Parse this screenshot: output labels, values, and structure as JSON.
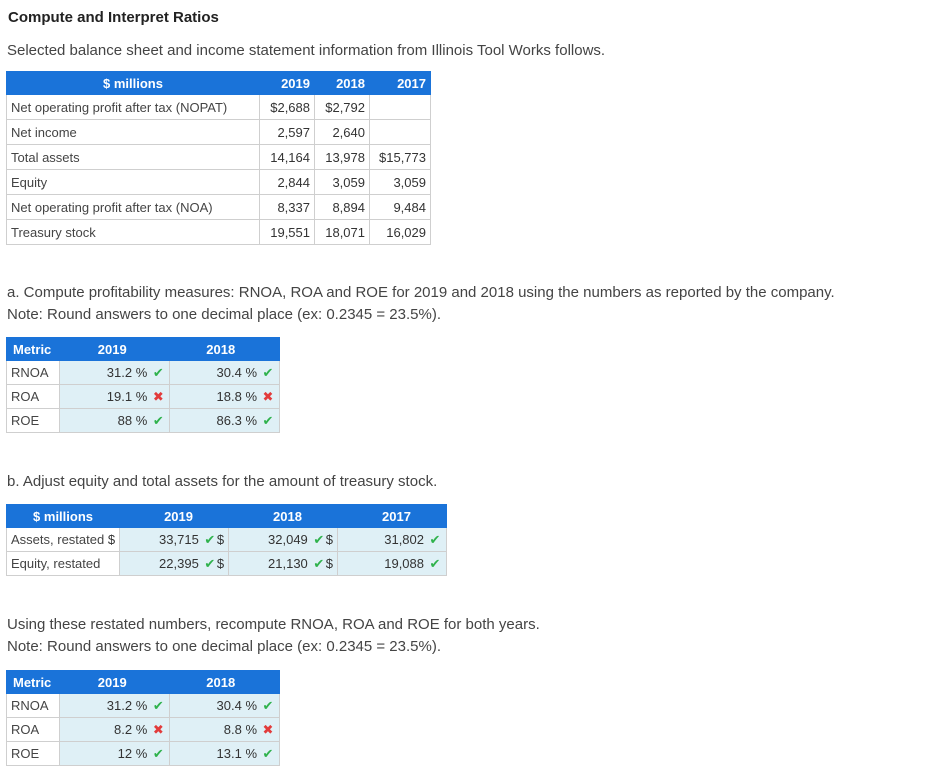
{
  "title": "Compute and Interpret Ratios",
  "intro": "Selected balance sheet and income statement information from Illinois Tool Works follows.",
  "table1": {
    "headers": [
      "$ millions",
      "2019",
      "2018",
      "2017"
    ],
    "rows": [
      {
        "label": "Net operating profit after tax (NOPAT)",
        "v2019": "$2,688",
        "v2018": "$2,792",
        "v2017": ""
      },
      {
        "label": "Net income",
        "v2019": "2,597",
        "v2018": "2,640",
        "v2017": ""
      },
      {
        "label": "Total assets",
        "v2019": "14,164",
        "v2018": "13,978",
        "v2017": "$15,773"
      },
      {
        "label": "Equity",
        "v2019": "2,844",
        "v2018": "3,059",
        "v2017": "3,059"
      },
      {
        "label": "Net operating profit after tax (NOA)",
        "v2019": "8,337",
        "v2018": "8,894",
        "v2017": "9,484"
      },
      {
        "label": "Treasury stock",
        "v2019": "19,551",
        "v2018": "18,071",
        "v2017": "16,029"
      }
    ]
  },
  "partA": {
    "line1": "a. Compute profitability measures: RNOA, ROA and ROE for 2019 and 2018 using the numbers as reported by the company.",
    "line2": "Note: Round answers to one decimal place (ex: 0.2345 = 23.5%).",
    "headers": [
      "Metric",
      "2019",
      "2018"
    ],
    "rows": [
      {
        "metric": "RNOA",
        "v2019": "31.2",
        "m2019": "ok",
        "v2018": "30.4",
        "m2018": "ok"
      },
      {
        "metric": "ROA",
        "v2019": "19.1",
        "m2019": "bad",
        "v2018": "18.8",
        "m2018": "bad"
      },
      {
        "metric": "ROE",
        "v2019": "88",
        "m2019": "ok",
        "v2018": "86.3",
        "m2018": "ok"
      }
    ]
  },
  "partB": {
    "line1": "b. Adjust equity and total assets for the amount of treasury stock.",
    "headers": [
      "$ millions",
      "2019",
      "2018",
      "2017"
    ],
    "rows": [
      {
        "label": "Assets, restated",
        "v2019": "33,715",
        "v2018": "32,049",
        "v2017": "31,802"
      },
      {
        "label": "Equity, restated",
        "v2019": "22,395",
        "v2018": "21,130",
        "v2017": "19,088"
      }
    ],
    "currency": "$"
  },
  "partC": {
    "line1": "Using these restated numbers, recompute RNOA, ROA and ROE for both years.",
    "line2": "Note: Round answers to one decimal place (ex: 0.2345 = 23.5%).",
    "headers": [
      "Metric",
      "2019",
      "2018"
    ],
    "rows": [
      {
        "metric": "RNOA",
        "v2019": "31.2",
        "m2019": "ok",
        "v2018": "30.4",
        "m2018": "ok"
      },
      {
        "metric": "ROA",
        "v2019": "8.2",
        "m2019": "bad",
        "v2018": "8.8",
        "m2018": "bad"
      },
      {
        "metric": "ROE",
        "v2019": "12",
        "m2019": "ok",
        "v2018": "13.1",
        "m2018": "ok"
      }
    ]
  },
  "percent_sign": "%",
  "icons": {
    "ok": "check-icon",
    "bad": "cross-icon"
  },
  "colors": {
    "header": "#1a73d9",
    "input_bg": "#dff0f6",
    "ok": "#2fb24c",
    "bad": "#e23b3b"
  }
}
